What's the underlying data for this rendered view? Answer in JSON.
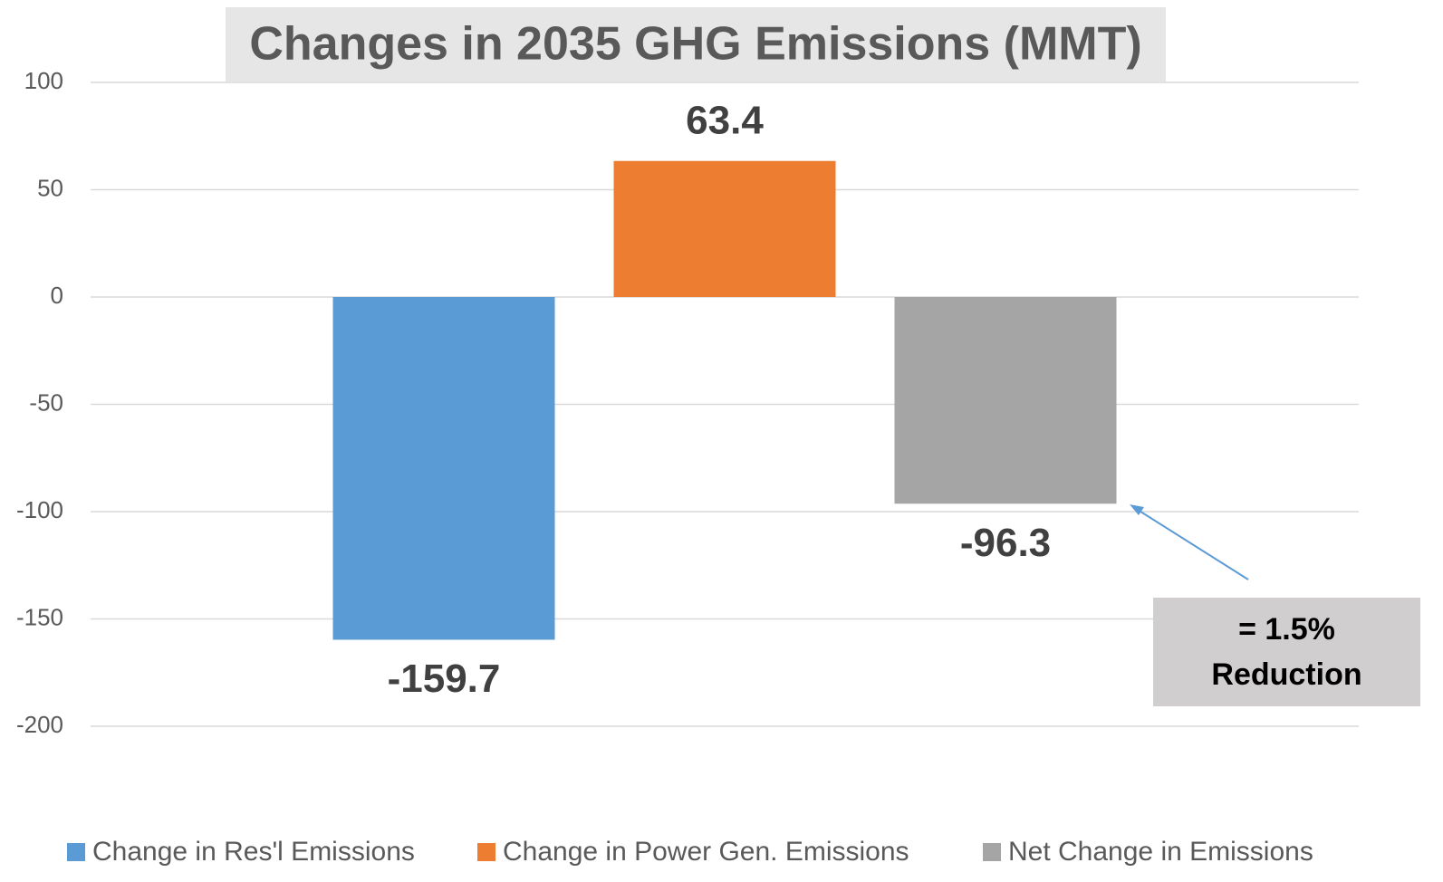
{
  "chart_data": {
    "type": "bar",
    "title": "Changes in 2035 GHG Emissions (MMT)",
    "categories": [
      null
    ],
    "series": [
      {
        "name": "Change in Res'l Emissions",
        "color": "#5b9bd5",
        "values": [
          -159.7
        ]
      },
      {
        "name": "Change in Power Gen. Emissions",
        "color": "#ed7d31",
        "values": [
          63.4
        ]
      },
      {
        "name": "Net Change in Emissions",
        "color": "#a5a5a5",
        "values": [
          -96.3
        ]
      }
    ],
    "ylim": [
      -200,
      100
    ],
    "yticks": [
      -200,
      -150,
      -100,
      -50,
      0,
      50,
      100
    ],
    "grid": true,
    "legend": "bottom",
    "annotation": "= 1.5% Reduction"
  }
}
